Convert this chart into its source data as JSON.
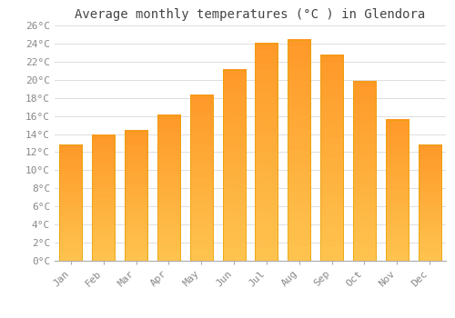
{
  "title": "Average monthly temperatures (°C ) in Glendora",
  "months": [
    "Jan",
    "Feb",
    "Mar",
    "Apr",
    "May",
    "Jun",
    "Jul",
    "Aug",
    "Sep",
    "Oct",
    "Nov",
    "Dec"
  ],
  "values": [
    12.8,
    13.9,
    14.4,
    16.1,
    18.3,
    21.1,
    24.0,
    24.4,
    22.7,
    19.8,
    15.6,
    12.8
  ],
  "bar_color_top": "#FFB300",
  "bar_color_bottom": "#FFD966",
  "bar_edge_color": "#E8A000",
  "ylim": [
    0,
    26
  ],
  "ytick_step": 2,
  "background_color": "#FFFFFF",
  "grid_color": "#DDDDDD",
  "title_fontsize": 10,
  "tick_fontsize": 8,
  "title_font": "monospace",
  "tick_font": "monospace",
  "tick_color": "#888888",
  "title_color": "#444444"
}
